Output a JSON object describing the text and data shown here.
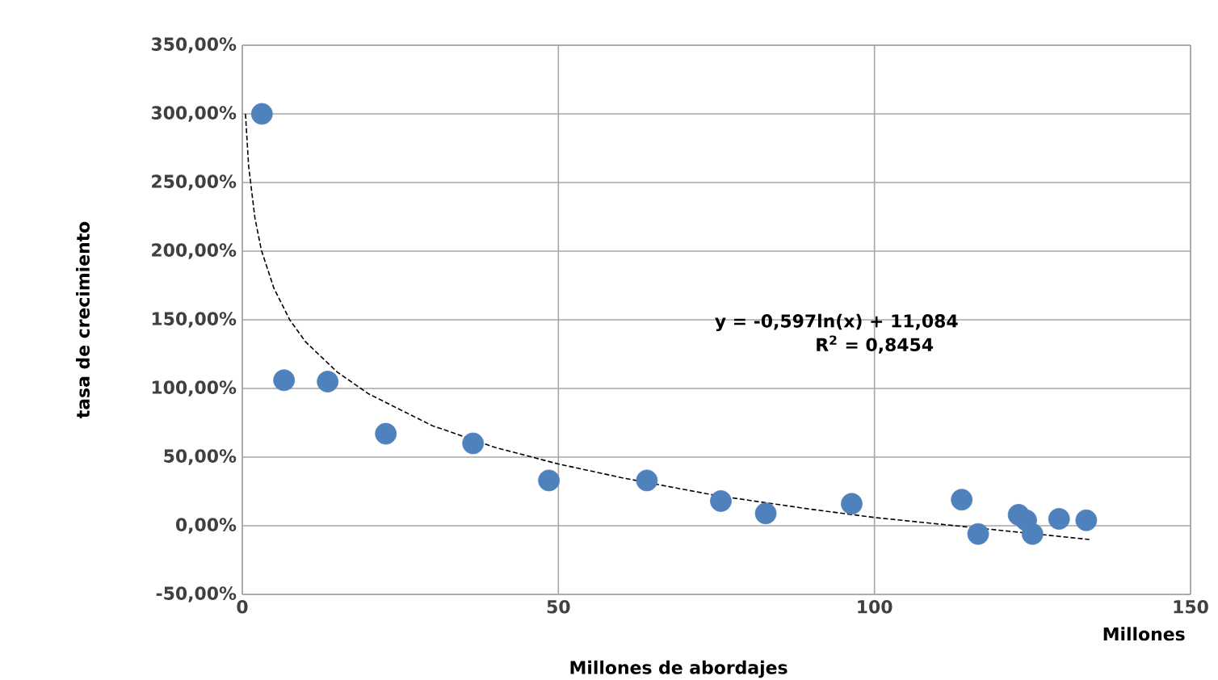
{
  "chart_data": {
    "type": "scatter",
    "xlabel": "Millones de abordajes",
    "ylabel": "tasa de crecimiento",
    "annotations": [
      "y = -0,597ln(x) + 11,084",
      "R$^{2}$ = 0,8454",
      "Millones"
    ],
    "xlim": [
      0,
      150
    ],
    "xticks": [
      0,
      50,
      100,
      150
    ],
    "ylim": [
      -50,
      350
    ],
    "yticks": [
      {
        "value": -50,
        "label": "-50,00%"
      },
      {
        "value": 0,
        "label": "0,00%"
      },
      {
        "value": 50,
        "label": "50,00%"
      },
      {
        "value": 100,
        "label": "100,00%"
      },
      {
        "value": 150,
        "label": "150,00%"
      },
      {
        "value": 200,
        "label": "200,00%"
      },
      {
        "value": 250,
        "label": "250,00%"
      },
      {
        "value": 300,
        "label": "300,00%"
      },
      {
        "value": 350,
        "label": "350,00%"
      }
    ],
    "grid": true,
    "series": [
      {
        "color": "#4f81bd",
        "marker": "circle",
        "x": [
          3.1,
          6.6,
          13.5,
          22.7,
          36.5,
          48.5,
          64,
          75.7,
          82.8,
          96.4,
          113.8,
          116.4,
          122.8,
          124,
          125,
          129.2,
          133.5
        ],
        "values": [
          300,
          106,
          105,
          67,
          60,
          33,
          33,
          18,
          9,
          16,
          19,
          -6,
          8,
          4,
          -6,
          5,
          4
        ]
      },
      {
        "type": "line",
        "color": "#000000",
        "line_style": "dashed",
        "marker": "none",
        "x": [
          0.5,
          1,
          2,
          3,
          5,
          7.5,
          10,
          15,
          20,
          30,
          40,
          50,
          60,
          75,
          90,
          100,
          115,
          134
        ],
        "values": [
          300,
          262,
          224,
          201,
          173,
          150,
          134,
          112,
          96,
          73,
          57,
          45,
          35,
          22,
          12,
          6,
          -1,
          -10
        ]
      }
    ]
  }
}
